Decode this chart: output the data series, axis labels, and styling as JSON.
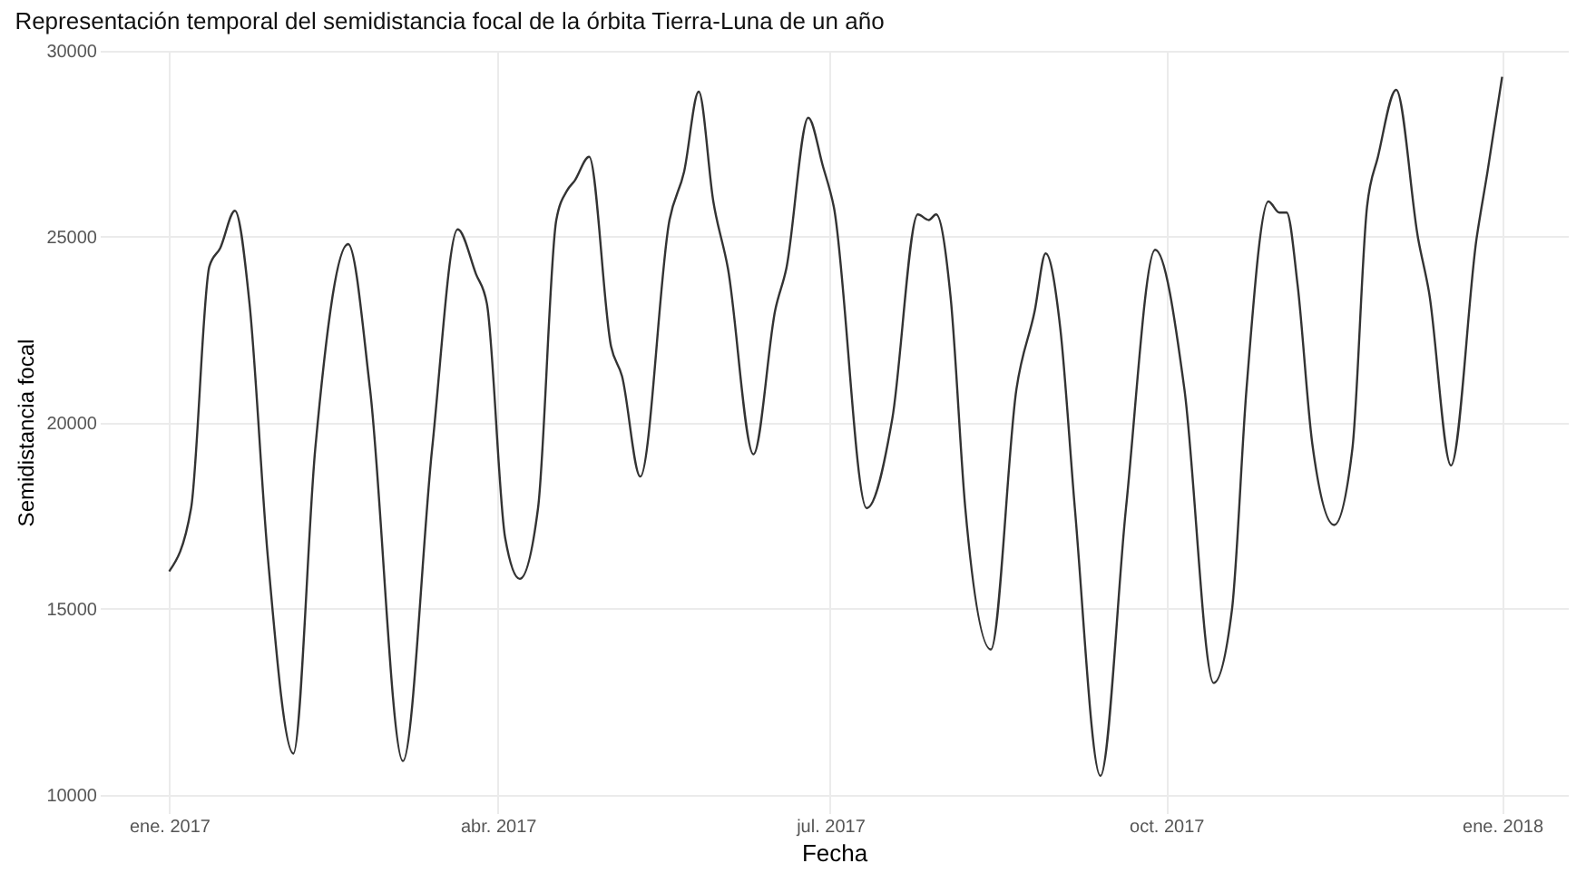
{
  "chart_data": {
    "type": "line",
    "title": "Representación temporal del semidistancia focal de la órbita Tierra-Luna de un año",
    "xlabel": "Fecha",
    "ylabel": "Semidistancia focal",
    "x": [
      "2017-01-01",
      "2017-01-07",
      "2017-01-12",
      "2017-01-15",
      "2017-01-19",
      "2017-01-23",
      "2017-01-28",
      "2017-02-04",
      "2017-02-10",
      "2017-02-19",
      "2017-02-25",
      "2017-03-06",
      "2017-03-14",
      "2017-03-21",
      "2017-03-26",
      "2017-03-29",
      "2017-04-03",
      "2017-04-07",
      "2017-04-12",
      "2017-04-17",
      "2017-04-20",
      "2017-04-22",
      "2017-04-26",
      "2017-05-02",
      "2017-05-05",
      "2017-05-10",
      "2017-05-18",
      "2017-05-22",
      "2017-05-26",
      "2017-05-30",
      "2017-06-03",
      "2017-06-10",
      "2017-06-16",
      "2017-06-19",
      "2017-06-25",
      "2017-06-29",
      "2017-07-02",
      "2017-07-11",
      "2017-07-18",
      "2017-07-25",
      "2017-07-28",
      "2017-07-30",
      "2017-08-03",
      "2017-08-07",
      "2017-08-14",
      "2017-08-21",
      "2017-08-26",
      "2017-08-29",
      "2017-09-02",
      "2017-09-06",
      "2017-09-13",
      "2017-09-20",
      "2017-09-28",
      "2017-10-06",
      "2017-10-14",
      "2017-10-19",
      "2017-10-23",
      "2017-10-29",
      "2017-11-01",
      "2017-11-03",
      "2017-11-06",
      "2017-11-10",
      "2017-11-16",
      "2017-11-21",
      "2017-11-25",
      "2017-11-28",
      "2017-12-03",
      "2017-12-09",
      "2017-12-12",
      "2017-12-18",
      "2017-12-25",
      "2017-12-28",
      "2018-01-01"
    ],
    "series": [
      {
        "color": "#333333",
        "values": [
          16000,
          17700,
          24200,
          24700,
          25700,
          23200,
          16400,
          11100,
          19300,
          24800,
          20900,
          10900,
          19300,
          25200,
          24000,
          23200,
          16900,
          15800,
          17700,
          25450,
          26250,
          26500,
          27150,
          22050,
          21250,
          18550,
          25450,
          26750,
          28900,
          25950,
          24150,
          19150,
          23050,
          24150,
          28200,
          26900,
          25800,
          17700,
          20100,
          25600,
          25450,
          25600,
          23350,
          17700,
          13900,
          20900,
          23000,
          24550,
          22550,
          17700,
          10500,
          17700,
          24650,
          20900,
          13000,
          14950,
          20900,
          25950,
          25650,
          25650,
          23700,
          19450,
          17250,
          19300,
          25800,
          27150,
          28950,
          24950,
          23500,
          18850,
          24950,
          26750,
          29300
        ]
      }
    ],
    "xlim": [
      "2016-12-13",
      "2018-01-19"
    ],
    "xticks": [
      {
        "value": "2017-01-01",
        "label": "ene. 2017"
      },
      {
        "value": "2017-04-01",
        "label": "abr. 2017"
      },
      {
        "value": "2017-07-01",
        "label": "jul. 2017"
      },
      {
        "value": "2017-10-01",
        "label": "oct. 2017"
      },
      {
        "value": "2018-01-01",
        "label": "ene. 2018"
      }
    ],
    "ylim": [
      9500,
      30000
    ],
    "yticks": [
      10000,
      15000,
      20000,
      25000,
      30000
    ],
    "grid": true,
    "line_style": "solid",
    "marker": "none"
  }
}
